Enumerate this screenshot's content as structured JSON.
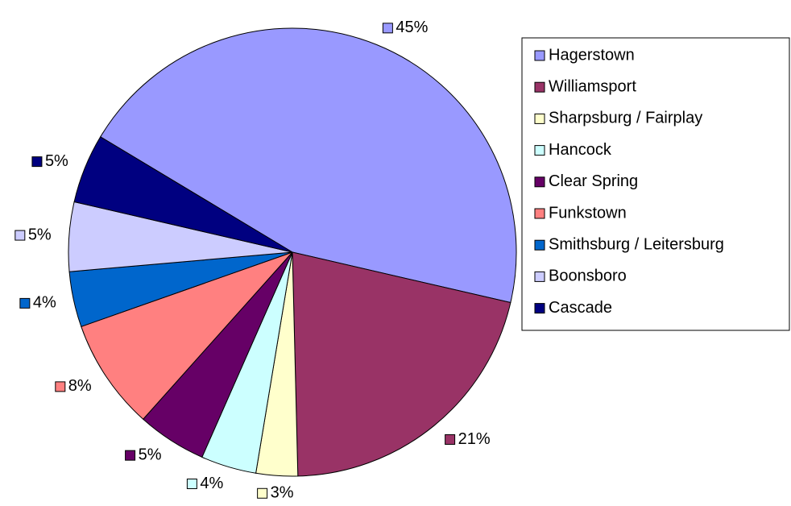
{
  "chart_data": {
    "type": "pie",
    "categories": [
      "Hagerstown",
      "Williamsport",
      "Sharpsburg / Fairplay",
      "Hancock",
      "Clear Spring",
      "Funkstown",
      "Smithsburg / Leitersburg",
      "Boonsboro",
      "Cascade"
    ],
    "values": [
      45,
      21,
      3,
      4,
      5,
      8,
      4,
      5,
      5
    ],
    "value_labels": [
      "45%",
      "21%",
      "3%",
      "4%",
      "5%",
      "8%",
      "4%",
      "5%",
      "5%"
    ],
    "colors": [
      "#9999ff",
      "#993366",
      "#ffffcc",
      "#ccffff",
      "#660066",
      "#ff8080",
      "#0066cc",
      "#ccccff",
      "#000080"
    ],
    "legend": "right"
  }
}
